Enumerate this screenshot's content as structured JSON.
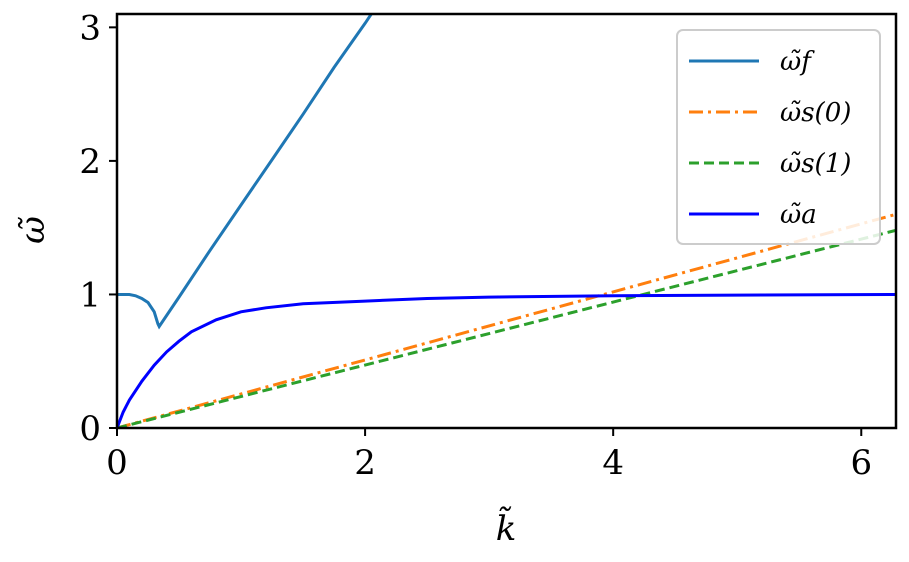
{
  "chart_data": {
    "type": "line",
    "title": "",
    "xlabel": "k̃",
    "ylabel": "ω̃",
    "xlim": [
      0,
      6.28
    ],
    "ylim": [
      0,
      3.1
    ],
    "xticks": [
      0,
      2,
      4,
      6
    ],
    "yticks": [
      0,
      1,
      2,
      3
    ],
    "xtick_labels": [
      "0",
      "2",
      "4",
      "6"
    ],
    "ytick_labels": [
      "0",
      "1",
      "2",
      "3"
    ],
    "grid": false,
    "legend_position": "top-right",
    "series": [
      {
        "name": "ω̃f",
        "color": "#1f77b4",
        "style": "solid",
        "x": [
          0,
          0.05,
          0.1,
          0.15,
          0.2,
          0.25,
          0.3,
          0.33,
          0.34,
          0.5,
          0.75,
          1.0,
          1.25,
          1.5,
          1.75,
          2.0,
          2.1
        ],
        "y": [
          1.0,
          1.0,
          1.0,
          0.99,
          0.97,
          0.94,
          0.87,
          0.78,
          0.76,
          0.98,
          1.33,
          1.67,
          2.01,
          2.35,
          2.7,
          3.03,
          3.17
        ]
      },
      {
        "name": "ω̃s(0)",
        "color": "#ff7f0e",
        "style": "dashdot",
        "x": [
          0,
          6.28
        ],
        "y": [
          0,
          1.6
        ]
      },
      {
        "name": "ω̃s(1)",
        "color": "#2ca02c",
        "style": "dashed",
        "x": [
          0,
          6.28
        ],
        "y": [
          0,
          1.48
        ]
      },
      {
        "name": "ω̃a",
        "color": "#0000ff",
        "style": "solid",
        "x": [
          0,
          0.05,
          0.1,
          0.2,
          0.3,
          0.4,
          0.5,
          0.6,
          0.8,
          1.0,
          1.2,
          1.5,
          2.0,
          2.5,
          3.0,
          4.0,
          5.0,
          6.28
        ],
        "y": [
          0,
          0.12,
          0.21,
          0.35,
          0.47,
          0.57,
          0.65,
          0.72,
          0.81,
          0.87,
          0.9,
          0.93,
          0.95,
          0.97,
          0.98,
          0.99,
          0.995,
          1.0
        ]
      }
    ]
  }
}
